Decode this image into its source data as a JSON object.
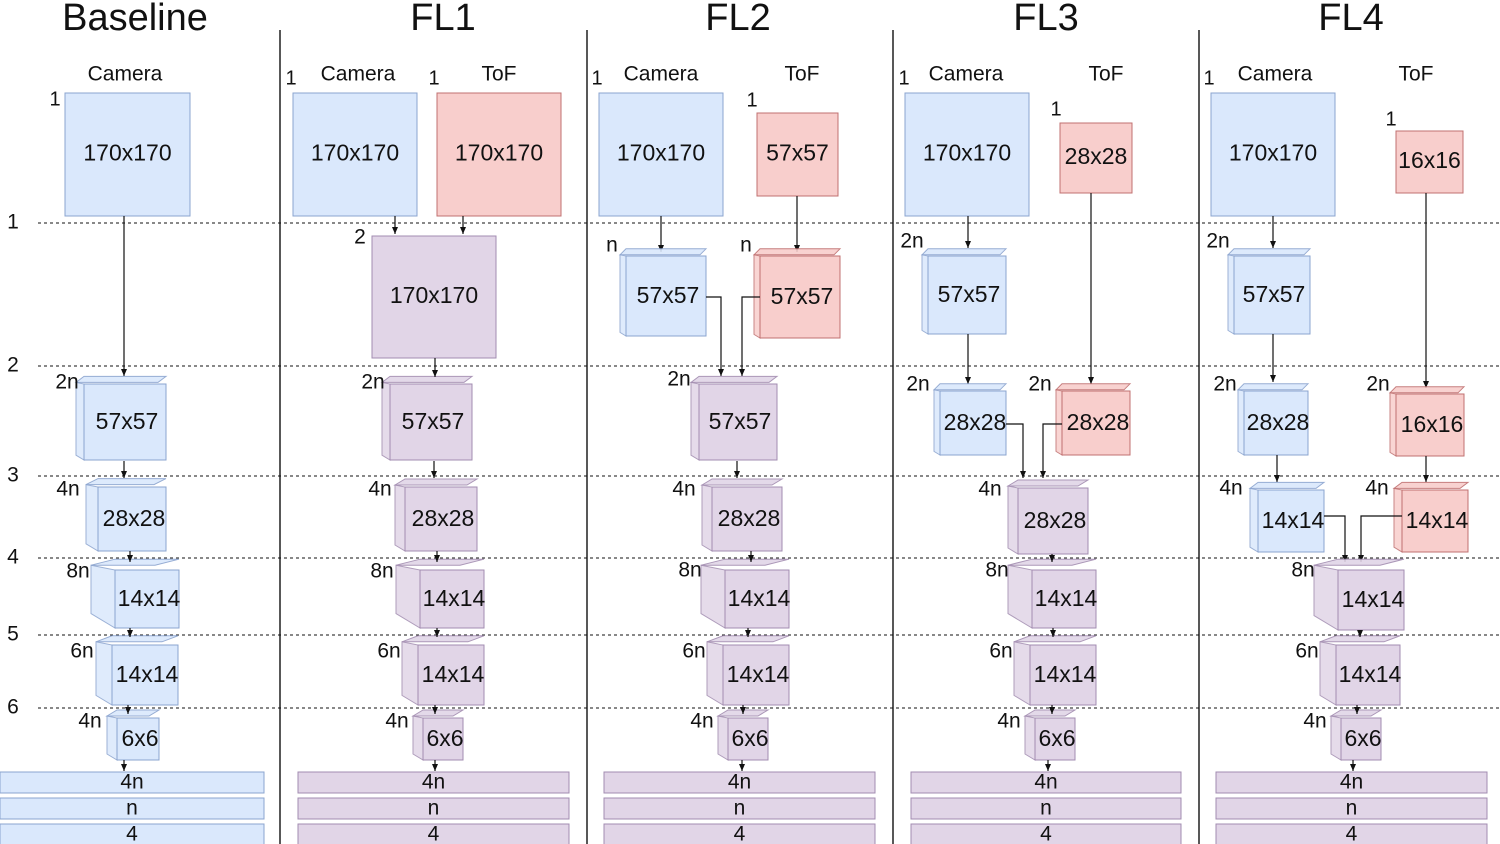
{
  "colors": {
    "camera": "#dae8fc",
    "camera_stroke": "#8ba4cf",
    "tof": "#f8cecc",
    "tof_stroke": "#c07070",
    "fused": "#e1d5e7",
    "fused_stroke": "#a28cb0"
  },
  "row_labels": [
    "1",
    "2",
    "3",
    "4",
    "5",
    "6"
  ],
  "columns": [
    {
      "title": "Baseline",
      "camera": {
        "label": "Camera",
        "channels": "1",
        "size": "170x170"
      },
      "tof": null,
      "extra_layers": [
        {
          "channels": "2n",
          "size": "57x57",
          "color": "camera"
        },
        {
          "channels": "4n",
          "size": "28x28",
          "color": "camera"
        },
        {
          "channels": "8n",
          "size": "14x14",
          "color": "camera"
        },
        {
          "channels": "6n",
          "size": "14x14",
          "color": "camera"
        },
        {
          "channels": "4n",
          "size": "6x6",
          "color": "camera"
        }
      ],
      "bars": [
        "4n",
        "n",
        "4"
      ]
    },
    {
      "title": "FL1",
      "camera": {
        "label": "Camera",
        "channels": "1",
        "size": "170x170"
      },
      "tof": {
        "label": "ToF",
        "channels": "1",
        "size": "170x170"
      },
      "fused_layers": [
        {
          "channels": "2",
          "size": "170x170"
        },
        {
          "channels": "2n",
          "size": "57x57"
        },
        {
          "channels": "4n",
          "size": "28x28"
        },
        {
          "channels": "8n",
          "size": "14x14"
        },
        {
          "channels": "6n",
          "size": "14x14"
        },
        {
          "channels": "4n",
          "size": "6x6"
        }
      ],
      "bars": [
        "4n",
        "n",
        "4"
      ]
    },
    {
      "title": "FL2",
      "camera": {
        "label": "Camera",
        "channels": "1",
        "size": "170x170"
      },
      "tof": {
        "label": "ToF",
        "channels": "1",
        "size": "57x57"
      },
      "camera_layers": [
        {
          "channels": "n",
          "size": "57x57"
        }
      ],
      "tof_layers": [
        {
          "channels": "n",
          "size": "57x57"
        }
      ],
      "fused_layers": [
        {
          "channels": "2n",
          "size": "57x57"
        },
        {
          "channels": "4n",
          "size": "28x28"
        },
        {
          "channels": "8n",
          "size": "14x14"
        },
        {
          "channels": "6n",
          "size": "14x14"
        },
        {
          "channels": "4n",
          "size": "6x6"
        }
      ],
      "bars": [
        "4n",
        "n",
        "4"
      ]
    },
    {
      "title": "FL3",
      "camera": {
        "label": "Camera",
        "channels": "1",
        "size": "170x170"
      },
      "tof": {
        "label": "ToF",
        "channels": "1",
        "size": "28x28"
      },
      "camera_layers": [
        {
          "channels": "2n",
          "size": "57x57"
        },
        {
          "channels": "2n",
          "size": "28x28"
        }
      ],
      "tof_layers": [
        {
          "channels": "2n",
          "size": "28x28"
        }
      ],
      "fused_layers": [
        {
          "channels": "4n",
          "size": "28x28"
        },
        {
          "channels": "8n",
          "size": "14x14"
        },
        {
          "channels": "6n",
          "size": "14x14"
        },
        {
          "channels": "4n",
          "size": "6x6"
        }
      ],
      "bars": [
        "4n",
        "n",
        "4"
      ]
    },
    {
      "title": "FL4",
      "camera": {
        "label": "Camera",
        "channels": "1",
        "size": "170x170"
      },
      "tof": {
        "label": "ToF",
        "channels": "1",
        "size": "16x16"
      },
      "camera_layers": [
        {
          "channels": "2n",
          "size": "57x57"
        },
        {
          "channels": "2n",
          "size": "28x28"
        },
        {
          "channels": "4n",
          "size": "14x14"
        }
      ],
      "tof_layers": [
        {
          "channels": "2n",
          "size": "16x16"
        },
        {
          "channels": "4n",
          "size": "14x14"
        }
      ],
      "fused_layers": [
        {
          "channels": "8n",
          "size": "14x14"
        },
        {
          "channels": "6n",
          "size": "14x14"
        },
        {
          "channels": "4n",
          "size": "6x6"
        }
      ],
      "bars": [
        "4n",
        "n",
        "4"
      ]
    }
  ]
}
